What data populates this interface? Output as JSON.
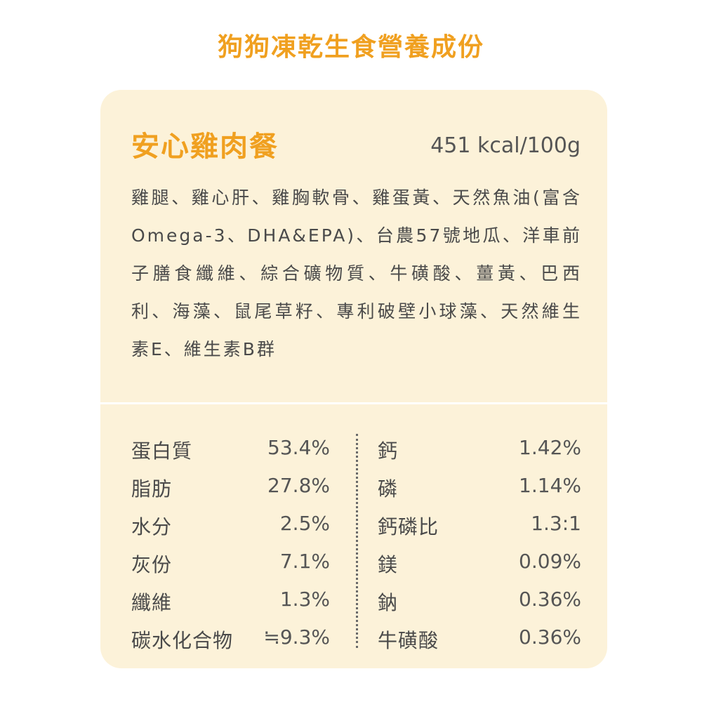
{
  "title": "狗狗凍乾生食營養成份",
  "product": {
    "name": "安心雞肉餐",
    "calories": "451 kcal/100g",
    "ingredients": "雞腿、雞心肝、雞胸軟骨、雞蛋黃、天然魚油(富含Omega-3、DHA&EPA)、台農57號地瓜、洋車前子膳食纖維、綜合礦物質、牛磺酸、薑黃、巴西利、海藻、鼠尾草籽、專利破壁小球藻、天然維生素E、維生素B群"
  },
  "nutrition_left": [
    {
      "label": "蛋白質",
      "value": "53.4%"
    },
    {
      "label": "脂肪",
      "value": "27.8%"
    },
    {
      "label": "水分",
      "value": "2.5%"
    },
    {
      "label": "灰份",
      "value": "7.1%"
    },
    {
      "label": "纖維",
      "value": "1.3%"
    },
    {
      "label": "碳水化合物",
      "value": "≒9.3%"
    }
  ],
  "nutrition_right": [
    {
      "label": "鈣",
      "value": "1.42%"
    },
    {
      "label": "磷",
      "value": "1.14%"
    },
    {
      "label": "鈣磷比",
      "value": "1.3:1"
    },
    {
      "label": "鎂",
      "value": "0.09%"
    },
    {
      "label": "鈉",
      "value": "0.36%"
    },
    {
      "label": "牛磺酸",
      "value": "0.36%"
    }
  ],
  "colors": {
    "accent": "#f0a020",
    "card_background": "#fcf2d9",
    "text": "#4a4a4a"
  }
}
